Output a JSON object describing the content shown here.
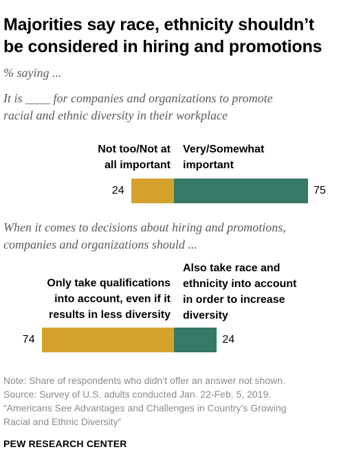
{
  "title_line1": "Majorities say race, ethnicity shouldn’t",
  "title_line2": "be considered in hiring and promotions",
  "subtitle": "% saying ...",
  "colors": {
    "gold": "#D4A22C",
    "green": "#357A66"
  },
  "chart_data": [
    {
      "type": "bar",
      "question_line1": "It is ____ for companies and organizations to promote",
      "question_line2": "racial and ethnic diversity in their workplace",
      "categories": [
        "Not too/Not at all important",
        "Very/Somewhat important"
      ],
      "label_left_line1": "Not too/Not at",
      "label_left_line2": "all important",
      "label_right_line1": "Very/Somewhat",
      "label_right_line2": "important",
      "values": [
        24,
        75
      ],
      "value_labels": [
        "24",
        "75"
      ]
    },
    {
      "type": "bar",
      "question_line1": "When it comes to decisions about hiring and promotions,",
      "question_line2": "companies and organizations should ...",
      "categories": [
        "Only take qualifications into account, even if it results in less diversity",
        "Also take race and ethnicity into account in order to increase diversity"
      ],
      "label_left_line1": "Only take qualifications",
      "label_left_line2": "into account, even if it",
      "label_left_line3": "results in less diversity",
      "label_right_line1": "Also take race and",
      "label_right_line2": "ethnicity into account",
      "label_right_line3": "in order to increase",
      "label_right_line4": "diversity",
      "values": [
        74,
        24
      ],
      "value_labels": [
        "74",
        "24"
      ]
    }
  ],
  "notes": {
    "line1": "Note: Share of respondents who didn’t offer an answer not shown.",
    "line2": "Source: Survey of U.S. adults conducted Jan. 22-Feb. 5, 2019.",
    "line3": "“Americans See Advantages and Challenges in Country’s Growing",
    "line4": "Racial and Ethnic Diversity”"
  },
  "source_name": "PEW RESEARCH CENTER"
}
